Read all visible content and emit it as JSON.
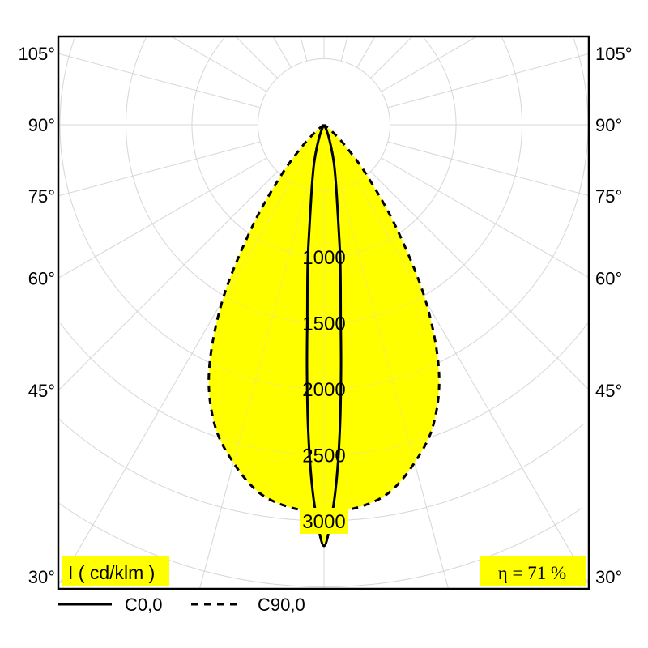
{
  "chart_data": {
    "type": "polar",
    "unit_label": "I ( cd/klm )",
    "efficiency_label": "η = 71 %",
    "radial_ticks": [
      1000,
      1500,
      2000,
      2500,
      3000
    ],
    "angle_labels": [
      "105°",
      "90°",
      "75°",
      "60°",
      "45°",
      "30°"
    ],
    "angle_values": [
      105,
      90,
      75,
      60,
      45,
      30
    ],
    "grid": true,
    "fill_color": "#ffff00",
    "series": [
      {
        "name": "C0,0",
        "style": "solid",
        "angles": [
          0,
          1,
          2,
          3,
          4,
          5,
          6,
          7,
          8,
          10,
          12,
          15,
          20,
          25,
          30
        ],
        "values": [
          3190,
          3000,
          2700,
          2300,
          1850,
          1450,
          1200,
          1000,
          800,
          560,
          420,
          280,
          120,
          40,
          0
        ]
      },
      {
        "name": "C90,0",
        "style": "dashed",
        "angles": [
          0,
          5,
          10,
          15,
          20,
          25,
          30,
          35,
          40,
          45,
          50,
          55
        ],
        "values": [
          2930,
          2910,
          2830,
          2650,
          2420,
          2060,
          1540,
          960,
          520,
          240,
          80,
          0
        ]
      }
    ]
  }
}
